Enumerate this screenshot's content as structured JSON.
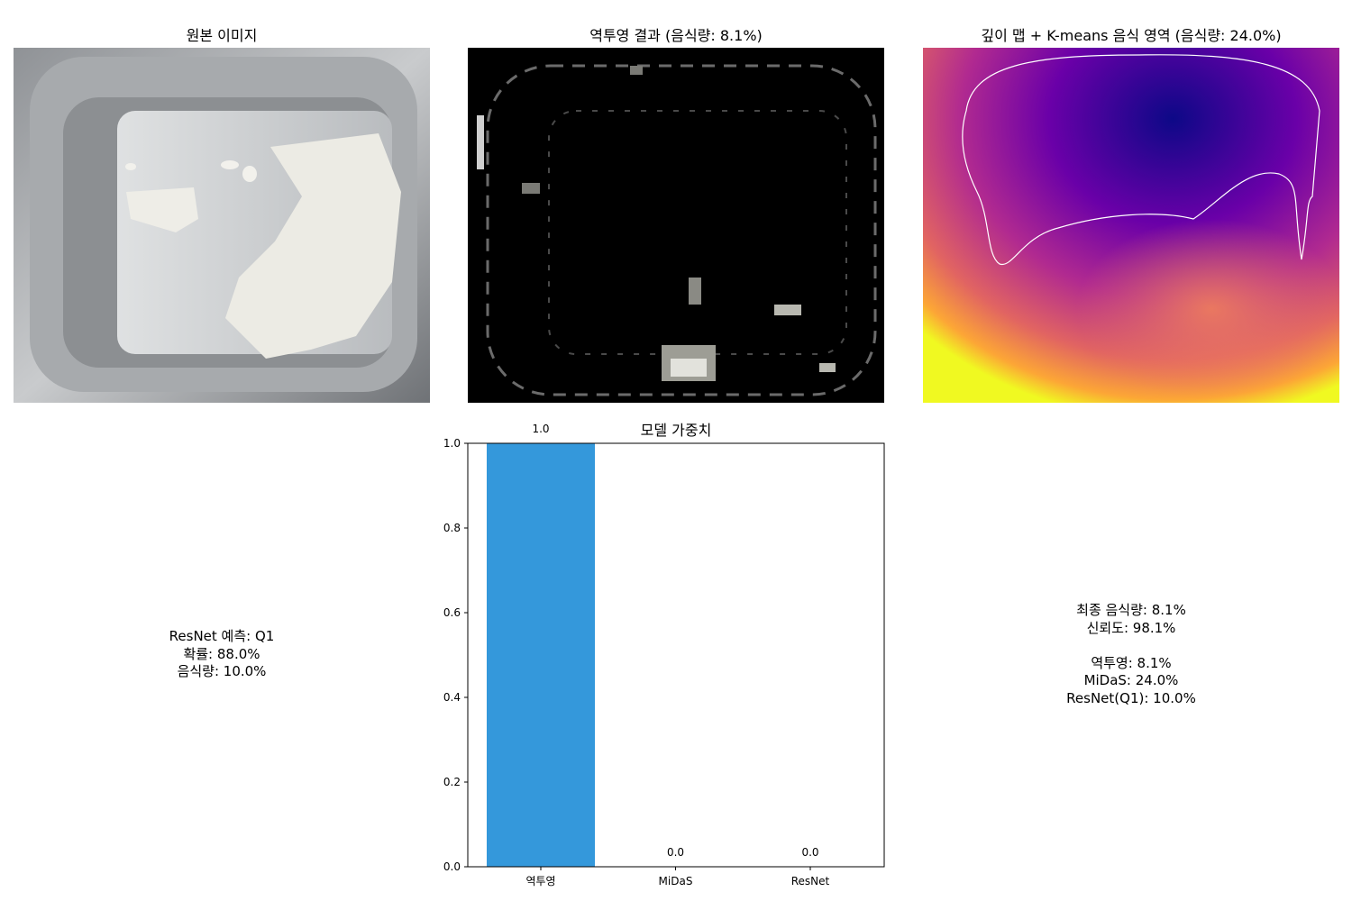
{
  "panels": {
    "original": {
      "title": "원본 이미지"
    },
    "backprojection": {
      "title": "역투영 결과 (음식량: 8.1%)"
    },
    "depth": {
      "title": "깊이 맵 + K-means 음식 영역 (음식량: 24.0%)"
    }
  },
  "resnet_text": "ResNet 예측: Q1\n확률: 88.0%\n음식량: 10.0%",
  "final_text": "최종 음식량: 8.1%\n신뢰도: 98.1%\n\n역투영: 8.1%\nMiDaS: 24.0%\nResNet(Q1): 10.0%",
  "colors": {
    "bar": "#3498db",
    "depth_low": "#0d0887",
    "depth_mid": "#b12a90",
    "depth_high": "#f0f921"
  },
  "chart_data": {
    "type": "bar",
    "title": "모델 가중치",
    "categories": [
      "역투영",
      "MiDaS",
      "ResNet"
    ],
    "values": [
      1.0,
      0.0,
      0.0
    ],
    "value_labels": [
      "1.0",
      "0.0",
      "0.0"
    ],
    "ylim": [
      0,
      1.0
    ],
    "yticks": [
      "0.0",
      "0.2",
      "0.4",
      "0.6",
      "0.8",
      "1.0"
    ],
    "xlabel": "",
    "ylabel": "",
    "grid": false
  }
}
